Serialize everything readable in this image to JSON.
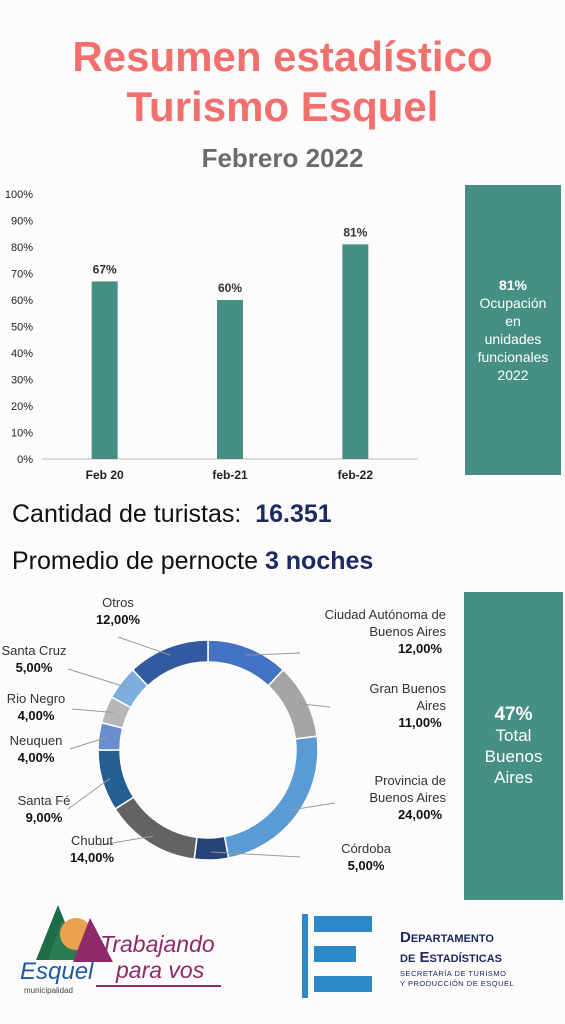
{
  "header": {
    "title_line1": "Resumen estadístico",
    "title_line2": "Turismo Esquel",
    "subtitle": "Febrero 2022"
  },
  "occupancy_box": {
    "value": "81%",
    "text_lines": [
      "Ocupación",
      "en",
      "unidades",
      "funcionales",
      "2022"
    ]
  },
  "stats": {
    "tourists_label": "Cantidad de turistas:",
    "tourists_value": "16.351",
    "stay_label": "Promedio de pernocte",
    "stay_value": "3 noches"
  },
  "buenos_aires_box": {
    "value": "47%",
    "text_lines": [
      "Total",
      "Buenos",
      "Aires"
    ]
  },
  "colors": {
    "teal": "#468f84",
    "title": "#f16f6c",
    "navy": "#1b2a63"
  },
  "chart_data": [
    {
      "type": "bar",
      "categories": [
        "Feb 20",
        "feb-21",
        "feb-22"
      ],
      "values": [
        67,
        60,
        81
      ],
      "data_labels": [
        "67%",
        "60%",
        "81%"
      ],
      "yticks": [
        "0%",
        "10%",
        "20%",
        "30%",
        "40%",
        "50%",
        "60%",
        "70%",
        "80%",
        "90%",
        "100%"
      ],
      "ylim": [
        0,
        100
      ],
      "grid": false,
      "color": "#468f84"
    },
    {
      "type": "pie",
      "style": "donut",
      "slices": [
        {
          "name": "Ciudad Autónoma de Buenos Aires",
          "label_lines": [
            "Ciudad Autónoma de",
            "Buenos Aires"
          ],
          "value": 12,
          "display": "12,00%",
          "color": "#4472c4"
        },
        {
          "name": "Gran Buenos Aires",
          "label_lines": [
            "Gran Buenos",
            "Aires"
          ],
          "value": 11,
          "display": "11,00%",
          "color": "#a5a5a5"
        },
        {
          "name": "Provincia de Buenos Aires",
          "label_lines": [
            "Provincia de",
            "Buenos Aires"
          ],
          "value": 24,
          "display": "24,00%",
          "color": "#5b9bd5"
        },
        {
          "name": "Córdoba",
          "label_lines": [
            "Córdoba"
          ],
          "value": 5,
          "display": "5,00%",
          "color": "#264478"
        },
        {
          "name": "Chubut",
          "label_lines": [
            "Chubut"
          ],
          "value": 14,
          "display": "14,00%",
          "color": "#636363"
        },
        {
          "name": "Santa Fé",
          "label_lines": [
            "Santa Fé"
          ],
          "value": 9,
          "display": "9,00%",
          "color": "#255e91"
        },
        {
          "name": "Neuquen",
          "label_lines": [
            "Neuquen"
          ],
          "value": 4,
          "display": "4,00%",
          "color": "#698ed0"
        },
        {
          "name": "Rio Negro",
          "label_lines": [
            "Rio Negro"
          ],
          "value": 4,
          "display": "4,00%",
          "color": "#b7b7b7"
        },
        {
          "name": "Santa Cruz",
          "label_lines": [
            "Santa Cruz"
          ],
          "value": 5,
          "display": "5,00%",
          "color": "#7cafdd"
        },
        {
          "name": "Otros",
          "label_lines": [
            "Otros"
          ],
          "value": 12,
          "display": "12,00%",
          "color": "#335aa1"
        }
      ]
    }
  ],
  "footer": {
    "esquel_logo": {
      "name": "Esquel",
      "tagline": "municipalidad",
      "slogan_line1": "Trabajando",
      "slogan_line2": "para vos"
    },
    "dept_logo": {
      "line1": "Departamento",
      "line2": "de Estadísticas",
      "line3": "Secretaría de Turismo",
      "line4": "y Producción de Esquel"
    }
  }
}
